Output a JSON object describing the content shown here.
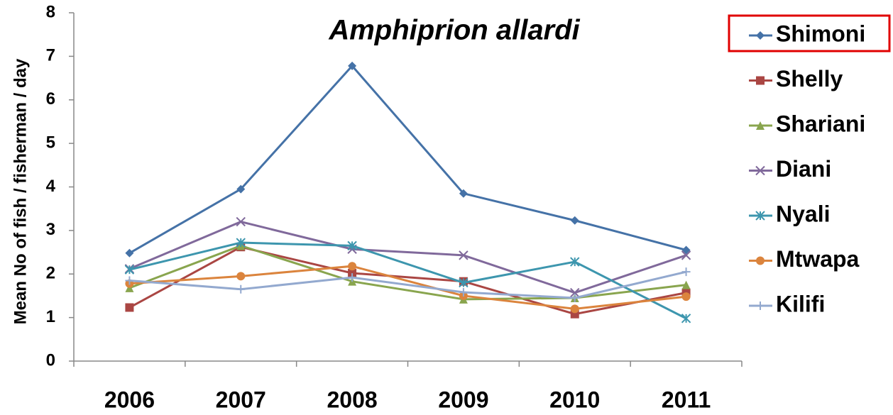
{
  "chart_data": {
    "type": "line",
    "title": "Amphiprion allardi",
    "y_label": "Mean No  of  fish / fisherman / day",
    "categories": [
      "2006",
      "2007",
      "2008",
      "2009",
      "2010",
      "2011"
    ],
    "ylim": [
      0,
      8
    ],
    "yticks": [
      0,
      1,
      2,
      3,
      4,
      5,
      6,
      7,
      8
    ],
    "grid": false,
    "legend": "right",
    "series": [
      {
        "name": "Shimoni",
        "color": "#4572a7",
        "marker": "diamond",
        "values": [
          2.48,
          3.95,
          6.78,
          3.85,
          3.23,
          2.55
        ]
      },
      {
        "name": "Shelly",
        "color": "#aa4643",
        "marker": "square",
        "values": [
          1.23,
          2.62,
          2.02,
          1.83,
          1.08,
          1.57
        ]
      },
      {
        "name": "Shariani",
        "color": "#89a54e",
        "marker": "triangle",
        "values": [
          1.68,
          2.65,
          1.83,
          1.42,
          1.45,
          1.75
        ]
      },
      {
        "name": "Diani",
        "color": "#80699b",
        "marker": "x",
        "values": [
          2.12,
          3.2,
          2.57,
          2.43,
          1.57,
          2.43
        ]
      },
      {
        "name": "Nyali",
        "color": "#3d96ae",
        "marker": "star",
        "values": [
          2.1,
          2.72,
          2.65,
          1.8,
          2.28,
          0.98
        ]
      },
      {
        "name": "Mtwapa",
        "color": "#db843d",
        "marker": "circle",
        "values": [
          1.78,
          1.95,
          2.18,
          1.5,
          1.2,
          1.48
        ]
      },
      {
        "name": "Kilifi",
        "color": "#93a9cf",
        "marker": "plus",
        "values": [
          1.85,
          1.65,
          1.92,
          1.58,
          1.45,
          2.05
        ]
      }
    ]
  }
}
